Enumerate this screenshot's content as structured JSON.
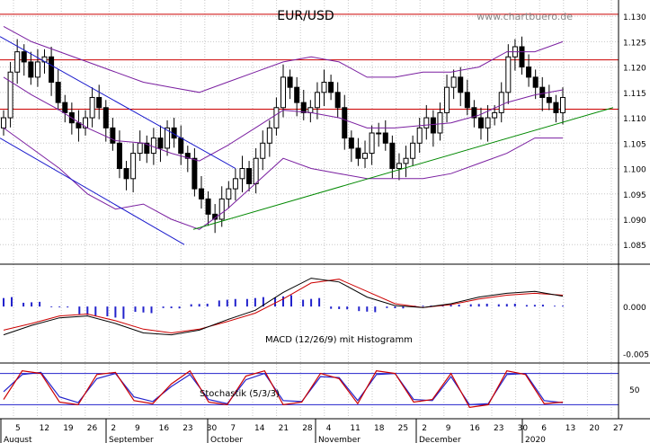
{
  "title": "EUR/USD",
  "watermark": "www.chartbuero.de",
  "colors": {
    "grid": "#c8c8c8",
    "bollinger": "#7a1fa0",
    "horizontal_lines": "#cc0000",
    "channel": "#1a1acc",
    "trendline": "#008800",
    "macd_line": "#000000",
    "signal_line": "#cc0000",
    "histogram": "#2222cc",
    "stoch_k": "#cc0000",
    "stoch_d": "#2222cc"
  },
  "chart_data": [
    {
      "type": "candlestick",
      "panel": "price",
      "title": "EUR/USD",
      "ylim": [
        1.0815,
        1.1325
      ],
      "y_ticks": [
        "1.130",
        "1.125",
        "1.120",
        "1.115",
        "1.110",
        "1.105",
        "1.100",
        "1.095",
        "1.090",
        "1.085"
      ],
      "x_ticks": [
        "5",
        "12",
        "19",
        "26",
        "2",
        "9",
        "16",
        "23",
        "30",
        "7",
        "14",
        "21",
        "28",
        "4",
        "11",
        "18",
        "25",
        "2",
        "9",
        "16",
        "23",
        "30",
        "6",
        "13",
        "20",
        "27"
      ],
      "months": [
        "August",
        "September",
        "October",
        "November",
        "December",
        "2020"
      ],
      "horizontal_lines": [
        1.1304,
        1.1214,
        1.1117
      ],
      "closes": [
        1.11,
        1.119,
        1.123,
        1.121,
        1.118,
        1.121,
        1.122,
        1.117,
        1.113,
        1.111,
        1.109,
        1.108,
        1.11,
        1.114,
        1.112,
        1.108,
        1.105,
        1.1,
        1.098,
        1.103,
        1.105,
        1.103,
        1.106,
        1.104,
        1.108,
        1.106,
        1.103,
        1.102,
        1.096,
        1.094,
        1.091,
        1.09,
        1.094,
        1.096,
        1.098,
        1.1,
        1.097,
        1.102,
        1.105,
        1.108,
        1.112,
        1.118,
        1.116,
        1.113,
        1.111,
        1.112,
        1.115,
        1.117,
        1.115,
        1.112,
        1.106,
        1.104,
        1.102,
        1.103,
        1.107,
        1.107,
        1.105,
        1.1,
        1.101,
        1.102,
        1.105,
        1.108,
        1.11,
        1.107,
        1.111,
        1.116,
        1.118,
        1.115,
        1.112,
        1.11,
        1.108,
        1.11,
        1.111,
        1.115,
        1.122,
        1.124,
        1.12,
        1.118,
        1.116,
        1.114,
        1.113,
        1.111,
        1.114
      ],
      "bollinger_upper_key": [
        1.128,
        1.125,
        1.123,
        1.121,
        1.119,
        1.117,
        1.116,
        1.115,
        1.117,
        1.119,
        1.121,
        1.122,
        1.121,
        1.118,
        1.118,
        1.119,
        1.119,
        1.12,
        1.123,
        1.123,
        1.125
      ],
      "bollinger_lower_key": [
        1.108,
        1.104,
        1.1,
        1.095,
        1.092,
        1.093,
        1.09,
        1.088,
        1.092,
        1.097,
        1.102,
        1.1,
        1.099,
        1.098,
        1.098,
        1.098,
        1.099,
        1.101,
        1.103,
        1.106,
        1.106
      ],
      "trendline": [
        [
          1.088
        ],
        [
          1.112
        ]
      ],
      "channel": [
        [
          1.126,
          1.085
        ],
        [
          1.106,
          1.0965
        ]
      ]
    },
    {
      "type": "bar+line",
      "panel": "macd",
      "label": "MACD (12/26/9) mit Histogramm",
      "ylim": [
        -0.0058,
        0.0043
      ],
      "y_ticks": [
        "0.000",
        "-0.005"
      ],
      "macd": [
        -0.003,
        -0.002,
        -0.0012,
        -0.001,
        -0.0018,
        -0.0028,
        -0.003,
        -0.0025,
        -0.0014,
        -0.0004,
        0.0015,
        0.003,
        0.0026,
        0.001,
        0.0001,
        -0.0001,
        0.0003,
        0.001,
        0.0014,
        0.0016,
        0.0011
      ],
      "signal": [
        -0.0025,
        -0.0018,
        -0.001,
        -0.0008,
        -0.0015,
        -0.0024,
        -0.0028,
        -0.0024,
        -0.0016,
        -0.0007,
        0.0008,
        0.0025,
        0.0029,
        0.0016,
        0.0003,
        -0.0001,
        0.0002,
        0.0008,
        0.0012,
        0.0014,
        0.0012
      ],
      "histogram": [
        0.001,
        0.0005,
        -0.0001,
        -0.001,
        -0.0013,
        -0.0007,
        -0.0002,
        0.0003,
        0.0008,
        0.001,
        0.0012,
        0.0009,
        -0.0003,
        -0.0006,
        -0.0002,
        0.0001,
        0.0002,
        0.0003,
        0.0003,
        0.0002,
        0.0001
      ]
    },
    {
      "type": "line",
      "panel": "stochastic",
      "label": "Stochastik (5/3/3)",
      "ylim": [
        0,
        100
      ],
      "y_ticks": [
        "50"
      ],
      "levels": [
        80,
        20
      ],
      "k": [
        30,
        85,
        80,
        25,
        20,
        78,
        82,
        28,
        22,
        60,
        85,
        25,
        20,
        75,
        85,
        20,
        25,
        80,
        70,
        22,
        85,
        80,
        25,
        30,
        80,
        15,
        20,
        85,
        78,
        22,
        25
      ],
      "d": [
        45,
        78,
        82,
        35,
        24,
        70,
        80,
        35,
        26,
        55,
        78,
        30,
        22,
        68,
        80,
        28,
        26,
        74,
        72,
        28,
        78,
        80,
        30,
        28,
        74,
        20,
        22,
        78,
        80,
        28,
        24
      ]
    }
  ]
}
